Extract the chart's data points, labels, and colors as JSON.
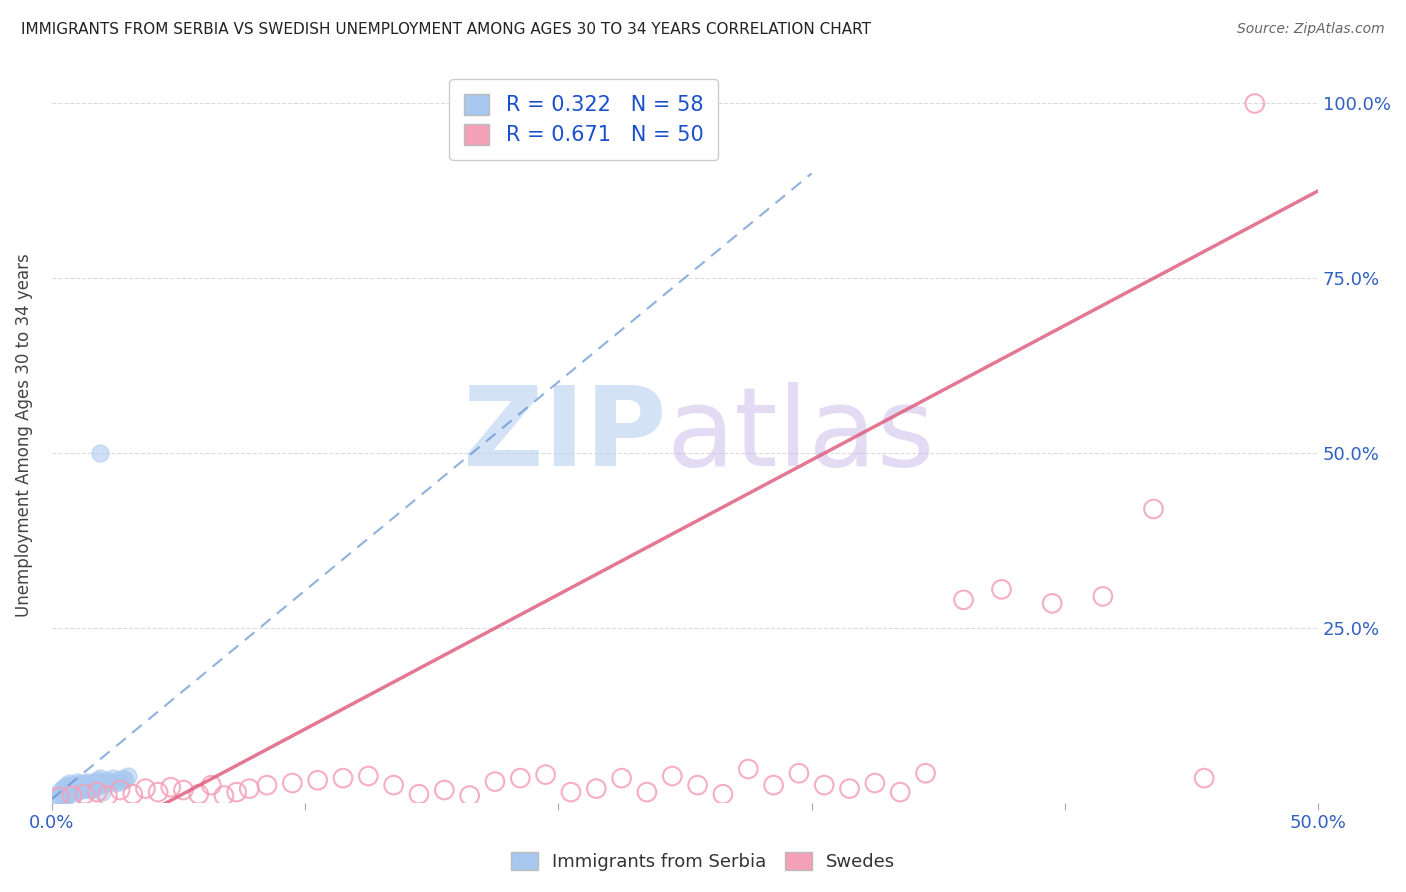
{
  "title": "IMMIGRANTS FROM SERBIA VS SWEDISH UNEMPLOYMENT AMONG AGES 30 TO 34 YEARS CORRELATION CHART",
  "source": "Source: ZipAtlas.com",
  "ylabel": "Unemployment Among Ages 30 to 34 years",
  "xlim": [
    0.0,
    0.5
  ],
  "ylim": [
    0.0,
    1.05
  ],
  "xticks": [
    0.0,
    0.1,
    0.2,
    0.3,
    0.4,
    0.5
  ],
  "xticklabels": [
    "0.0%",
    "",
    "",
    "",
    "",
    "50.0%"
  ],
  "ytick_positions": [
    0.0,
    0.25,
    0.5,
    0.75,
    1.0
  ],
  "yticklabels": [
    "",
    "25.0%",
    "50.0%",
    "75.0%",
    "100.0%"
  ],
  "blue_R": 0.322,
  "blue_N": 58,
  "pink_R": 0.671,
  "pink_N": 50,
  "blue_color": "#a8c8f0",
  "pink_color": "#f4a0b8",
  "blue_line_color": "#6090d0",
  "pink_line_color": "#e06080",
  "legend_labels": [
    "Immigrants from Serbia",
    "Swedes"
  ],
  "background_color": "#ffffff",
  "grid_color": "#cccccc",
  "blue_scatter_x": [
    0.002,
    0.003,
    0.003,
    0.004,
    0.004,
    0.004,
    0.005,
    0.005,
    0.005,
    0.005,
    0.006,
    0.006,
    0.006,
    0.006,
    0.007,
    0.007,
    0.007,
    0.007,
    0.008,
    0.008,
    0.008,
    0.009,
    0.009,
    0.01,
    0.01,
    0.01,
    0.011,
    0.011,
    0.012,
    0.012,
    0.013,
    0.013,
    0.014,
    0.014,
    0.015,
    0.015,
    0.016,
    0.016,
    0.017,
    0.017,
    0.018,
    0.018,
    0.019,
    0.019,
    0.02,
    0.02,
    0.021,
    0.022,
    0.023,
    0.024,
    0.025,
    0.026,
    0.027,
    0.028,
    0.029,
    0.03,
    0.019,
    0.02
  ],
  "blue_scatter_y": [
    0.005,
    0.008,
    0.015,
    0.01,
    0.012,
    0.02,
    0.008,
    0.015,
    0.018,
    0.022,
    0.01,
    0.015,
    0.02,
    0.025,
    0.012,
    0.018,
    0.022,
    0.028,
    0.015,
    0.02,
    0.025,
    0.018,
    0.025,
    0.015,
    0.02,
    0.03,
    0.022,
    0.028,
    0.018,
    0.025,
    0.02,
    0.028,
    0.022,
    0.03,
    0.018,
    0.025,
    0.02,
    0.028,
    0.022,
    0.03,
    0.025,
    0.032,
    0.028,
    0.035,
    0.025,
    0.03,
    0.028,
    0.032,
    0.03,
    0.035,
    0.028,
    0.032,
    0.03,
    0.035,
    0.032,
    0.038,
    0.5,
    0.015
  ],
  "pink_scatter_x": [
    0.003,
    0.008,
    0.013,
    0.018,
    0.022,
    0.027,
    0.032,
    0.037,
    0.042,
    0.047,
    0.052,
    0.058,
    0.063,
    0.068,
    0.073,
    0.078,
    0.085,
    0.095,
    0.105,
    0.115,
    0.125,
    0.135,
    0.145,
    0.155,
    0.165,
    0.175,
    0.185,
    0.195,
    0.205,
    0.215,
    0.225,
    0.235,
    0.245,
    0.255,
    0.265,
    0.275,
    0.285,
    0.295,
    0.305,
    0.315,
    0.325,
    0.335,
    0.345,
    0.36,
    0.375,
    0.395,
    0.415,
    0.435,
    0.455,
    0.475
  ],
  "pink_scatter_y": [
    0.008,
    0.01,
    0.012,
    0.015,
    0.01,
    0.018,
    0.012,
    0.02,
    0.015,
    0.022,
    0.018,
    0.012,
    0.025,
    0.01,
    0.015,
    0.02,
    0.025,
    0.028,
    0.032,
    0.035,
    0.038,
    0.025,
    0.012,
    0.018,
    0.01,
    0.03,
    0.035,
    0.04,
    0.015,
    0.02,
    0.035,
    0.015,
    0.038,
    0.025,
    0.012,
    0.048,
    0.025,
    0.042,
    0.025,
    0.02,
    0.028,
    0.015,
    0.042,
    0.29,
    0.305,
    0.285,
    0.295,
    0.42,
    0.035,
    1.0
  ],
  "blue_trendline_x": [
    0.0,
    0.3
  ],
  "blue_trendline_y": [
    0.005,
    0.9
  ],
  "pink_trendline_x": [
    0.035,
    0.5
  ],
  "pink_trendline_y": [
    -0.02,
    0.875
  ]
}
